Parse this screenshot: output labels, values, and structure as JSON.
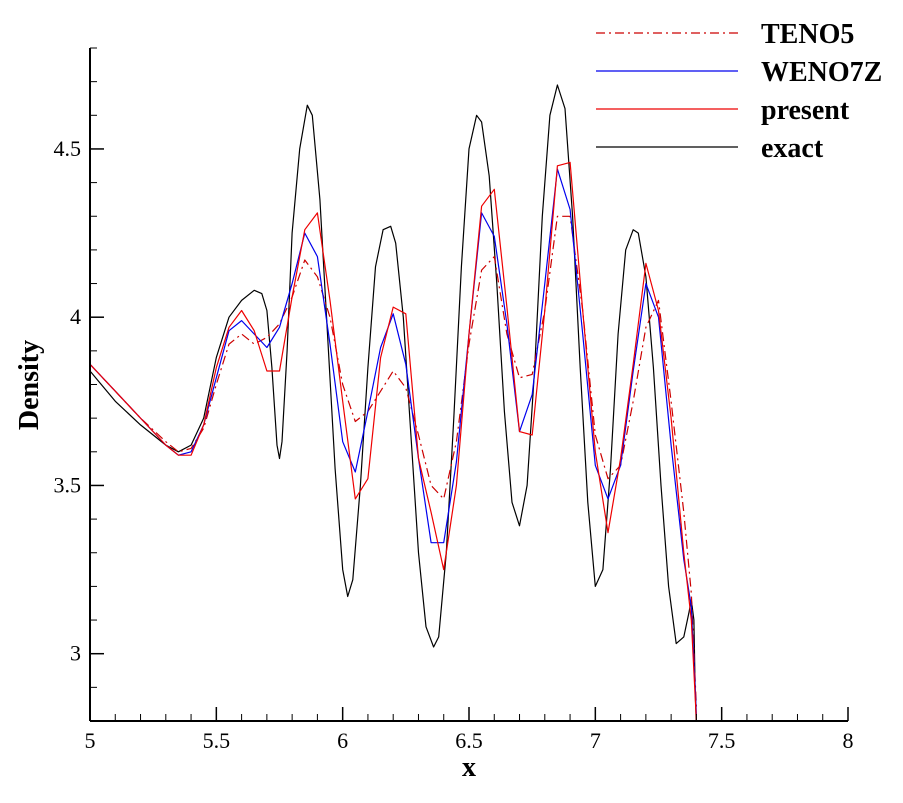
{
  "chart_data": {
    "type": "line",
    "title": "",
    "xlabel": "x",
    "ylabel": "Density",
    "xlim": [
      5,
      8
    ],
    "ylim": [
      2.8,
      4.8
    ],
    "xticks": [
      5,
      5.5,
      6,
      6.5,
      7,
      7.5,
      8
    ],
    "xtick_labels": [
      "5",
      "5.5",
      "6",
      "6.5",
      "7",
      "7.5",
      "8"
    ],
    "yticks": [
      3,
      3.5,
      4,
      4.5
    ],
    "ytick_labels": [
      "3",
      "3.5",
      "4",
      "4.5"
    ],
    "grid": false,
    "legend_position": "top-right",
    "series": [
      {
        "name": "TENO5",
        "color": "#cc0000",
        "dash": "dashdot",
        "x": [
          5.0,
          5.1,
          5.2,
          5.3,
          5.35,
          5.4,
          5.45,
          5.5,
          5.55,
          5.6,
          5.65,
          5.7,
          5.75,
          5.8,
          5.85,
          5.9,
          5.95,
          6.0,
          6.05,
          6.1,
          6.15,
          6.2,
          6.25,
          6.3,
          6.35,
          6.4,
          6.45,
          6.5,
          6.55,
          6.6,
          6.65,
          6.7,
          6.75,
          6.8,
          6.85,
          6.9,
          6.95,
          7.0,
          7.05,
          7.1,
          7.15,
          7.2,
          7.25,
          7.3,
          7.35,
          7.38,
          7.4
        ],
        "y": [
          3.86,
          3.78,
          3.7,
          3.63,
          3.6,
          3.61,
          3.67,
          3.8,
          3.92,
          3.95,
          3.92,
          3.94,
          3.98,
          4.06,
          4.17,
          4.12,
          4.0,
          3.8,
          3.69,
          3.72,
          3.78,
          3.84,
          3.79,
          3.65,
          3.5,
          3.46,
          3.63,
          3.92,
          4.14,
          4.18,
          3.95,
          3.82,
          3.83,
          4.02,
          4.3,
          4.3,
          4.02,
          3.65,
          3.52,
          3.56,
          3.75,
          3.97,
          4.05,
          3.75,
          3.42,
          3.18,
          2.84
        ]
      },
      {
        "name": "WENO7Z",
        "color": "#0000ee",
        "dash": "solid",
        "x": [
          5.0,
          5.1,
          5.2,
          5.3,
          5.35,
          5.4,
          5.45,
          5.5,
          5.55,
          5.6,
          5.65,
          5.7,
          5.75,
          5.8,
          5.85,
          5.9,
          5.95,
          6.0,
          6.05,
          6.1,
          6.15,
          6.2,
          6.25,
          6.3,
          6.35,
          6.4,
          6.45,
          6.5,
          6.55,
          6.6,
          6.65,
          6.7,
          6.75,
          6.8,
          6.85,
          6.9,
          6.95,
          7.0,
          7.05,
          7.1,
          7.15,
          7.2,
          7.25,
          7.3,
          7.35,
          7.38,
          7.4
        ],
        "y": [
          3.86,
          3.78,
          3.7,
          3.62,
          3.59,
          3.6,
          3.68,
          3.82,
          3.96,
          3.99,
          3.95,
          3.91,
          3.97,
          4.1,
          4.25,
          4.18,
          3.92,
          3.63,
          3.54,
          3.72,
          3.91,
          4.01,
          3.86,
          3.58,
          3.33,
          3.33,
          3.57,
          3.95,
          4.31,
          4.24,
          3.98,
          3.66,
          3.77,
          4.1,
          4.44,
          4.32,
          3.95,
          3.56,
          3.46,
          3.56,
          3.84,
          4.1,
          4.0,
          3.62,
          3.28,
          3.14,
          2.82
        ]
      },
      {
        "name": "present",
        "color": "#ee0000",
        "dash": "solid",
        "x": [
          5.0,
          5.1,
          5.2,
          5.3,
          5.35,
          5.4,
          5.45,
          5.5,
          5.55,
          5.6,
          5.65,
          5.7,
          5.75,
          5.8,
          5.85,
          5.9,
          5.95,
          6.0,
          6.05,
          6.1,
          6.15,
          6.2,
          6.25,
          6.3,
          6.35,
          6.4,
          6.45,
          6.5,
          6.55,
          6.6,
          6.65,
          6.7,
          6.75,
          6.8,
          6.85,
          6.9,
          6.95,
          7.0,
          7.05,
          7.1,
          7.15,
          7.2,
          7.25,
          7.3,
          7.35,
          7.38,
          7.4
        ],
        "y": [
          3.86,
          3.78,
          3.7,
          3.62,
          3.59,
          3.59,
          3.68,
          3.85,
          3.97,
          4.02,
          3.96,
          3.84,
          3.84,
          4.06,
          4.26,
          4.31,
          4.05,
          3.75,
          3.46,
          3.52,
          3.88,
          4.03,
          4.01,
          3.58,
          3.42,
          3.25,
          3.5,
          3.95,
          4.33,
          4.38,
          4.03,
          3.66,
          3.65,
          4.02,
          4.45,
          4.46,
          4.02,
          3.6,
          3.36,
          3.58,
          3.86,
          4.16,
          4.02,
          3.7,
          3.3,
          3.1,
          2.8
        ]
      },
      {
        "name": "exact",
        "color": "#000000",
        "dash": "solid",
        "x": [
          5.0,
          5.1,
          5.2,
          5.3,
          5.35,
          5.4,
          5.45,
          5.5,
          5.55,
          5.6,
          5.65,
          5.68,
          5.7,
          5.72,
          5.74,
          5.75,
          5.76,
          5.78,
          5.8,
          5.83,
          5.86,
          5.88,
          5.91,
          5.94,
          5.97,
          6.0,
          6.02,
          6.04,
          6.07,
          6.1,
          6.13,
          6.16,
          6.19,
          6.21,
          6.24,
          6.27,
          6.3,
          6.33,
          6.36,
          6.38,
          6.41,
          6.44,
          6.47,
          6.5,
          6.53,
          6.55,
          6.58,
          6.61,
          6.64,
          6.67,
          6.7,
          6.73,
          6.76,
          6.79,
          6.82,
          6.85,
          6.88,
          6.91,
          6.94,
          6.97,
          7.0,
          7.03,
          7.06,
          7.09,
          7.12,
          7.15,
          7.17,
          7.2,
          7.23,
          7.26,
          7.29,
          7.32,
          7.35,
          7.37,
          7.38,
          7.39,
          7.395,
          7.4
        ],
        "y": [
          3.84,
          3.75,
          3.68,
          3.62,
          3.6,
          3.62,
          3.7,
          3.88,
          4.0,
          4.05,
          4.08,
          4.07,
          4.02,
          3.85,
          3.62,
          3.58,
          3.63,
          3.9,
          4.25,
          4.5,
          4.63,
          4.6,
          4.35,
          3.95,
          3.55,
          3.25,
          3.17,
          3.22,
          3.5,
          3.85,
          4.15,
          4.26,
          4.27,
          4.22,
          4.0,
          3.65,
          3.3,
          3.08,
          3.02,
          3.05,
          3.3,
          3.7,
          4.15,
          4.5,
          4.6,
          4.58,
          4.42,
          4.1,
          3.72,
          3.45,
          3.38,
          3.5,
          3.85,
          4.3,
          4.6,
          4.69,
          4.62,
          4.3,
          3.85,
          3.45,
          3.2,
          3.25,
          3.55,
          3.95,
          4.2,
          4.26,
          4.25,
          4.12,
          3.85,
          3.5,
          3.2,
          3.03,
          3.05,
          3.12,
          3.16,
          3.1,
          2.9,
          2.78
        ]
      }
    ]
  }
}
